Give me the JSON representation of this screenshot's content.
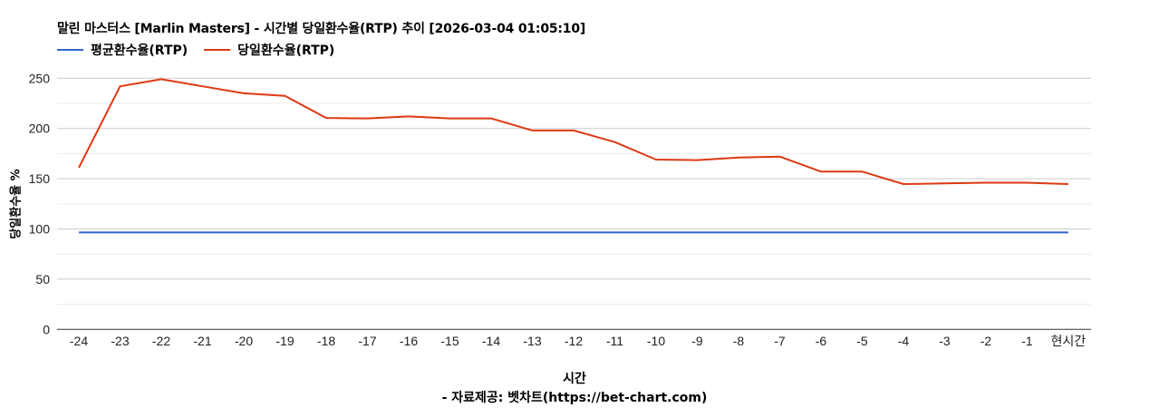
{
  "title": "말린 마스터스 [Marlin Masters] - 시간별 당일환수율(RTP) 추이 [2026-03-04 01:05:10]",
  "legend": [
    {
      "label": "평균환수율(RTP)",
      "color": "#3366cc"
    },
    {
      "label": "당일환수율(RTP)",
      "color": "#dc3912"
    }
  ],
  "axes": {
    "ylabel": "당일환수율 %",
    "xlabel": "시간",
    "source": "- 자료제공: 벳차트(https://bet-chart.com)"
  },
  "chart_data": {
    "type": "line",
    "title": "말린 마스터스 [Marlin Masters] - 시간별 당일환수율(RTP) 추이 [2026-03-04 01:05:10]",
    "xlabel": "시간",
    "ylabel": "당일환수율 %",
    "ylim": [
      0,
      250
    ],
    "yticks": [
      0,
      50,
      100,
      150,
      200,
      250
    ],
    "grid": true,
    "legend_position": "top",
    "categories": [
      "-24",
      "-23",
      "-22",
      "-21",
      "-20",
      "-19",
      "-18",
      "-17",
      "-16",
      "-15",
      "-14",
      "-13",
      "-12",
      "-11",
      "-10",
      "-9",
      "-8",
      "-7",
      "-6",
      "-5",
      "-4",
      "-3",
      "-2",
      "-1",
      "현시간"
    ],
    "series": [
      {
        "name": "평균환수율(RTP)",
        "color": "#3366cc",
        "values": [
          96.5,
          96.5,
          96.5,
          96.5,
          96.5,
          96.5,
          96.5,
          96.5,
          96.5,
          96.5,
          96.5,
          96.5,
          96.5,
          96.5,
          96.5,
          96.5,
          96.5,
          96.5,
          96.5,
          96.5,
          96.5,
          96.5,
          96.5,
          96.5,
          96.5
        ]
      },
      {
        "name": "당일환수율(RTP)",
        "color": "#dc3912",
        "values": [
          161,
          242,
          249,
          242,
          235,
          232.5,
          210.5,
          210,
          212,
          210,
          210,
          198,
          198,
          186.5,
          169,
          168.5,
          171,
          172,
          157,
          157,
          144.7,
          145.3,
          146,
          146,
          144.7
        ]
      }
    ]
  }
}
